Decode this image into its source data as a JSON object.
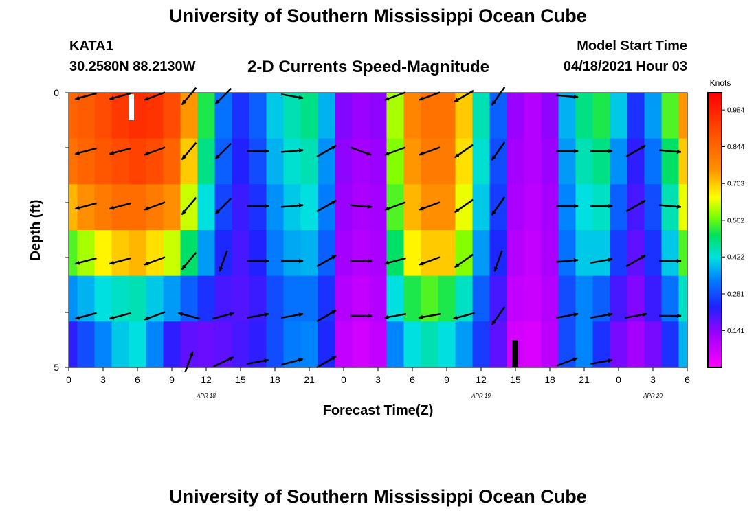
{
  "header": {
    "title": "University of Southern Mississippi Ocean Cube",
    "station": "KATA1",
    "location": "30.2580N  88.2130W",
    "chart_title": "2-D Currents Speed-Magnitude",
    "model_label": "Model Start Time",
    "model_time": "04/18/2021 Hour 03"
  },
  "footer": {
    "title": "University of Southern Mississippi Ocean Cube"
  },
  "colors": {
    "arrow": "#000000",
    "frame": "#000000"
  },
  "chart_data": {
    "type": "heatmap",
    "title": "2-D Currents Speed-Magnitude",
    "xlabel": "Forecast Time(Z)",
    "ylabel": "Depth (ft)",
    "x_ticks": [
      "0",
      "3",
      "6",
      "9",
      "12",
      "15",
      "18",
      "21",
      "0",
      "3",
      "6",
      "9",
      "12",
      "15",
      "18",
      "21",
      "0",
      "3",
      "6"
    ],
    "x_range_hours": [
      0,
      54
    ],
    "date_labels": [
      {
        "label": "APR 18",
        "hour": 12
      },
      {
        "label": "APR 19",
        "hour": 36
      },
      {
        "label": "APR 20",
        "hour": 51
      }
    ],
    "y_ticks": [
      "0",
      "5"
    ],
    "depth_range_ft": [
      0,
      5
    ],
    "colorbar": {
      "unit": "Knots",
      "ticks": [
        "0.141",
        "0.281",
        "0.422",
        "0.562",
        "0.703",
        "0.844",
        "0.984"
      ],
      "tick_values": [
        0.141,
        0.281,
        0.422,
        0.562,
        0.703,
        0.844,
        0.984
      ],
      "range": [
        0.0,
        1.05
      ]
    },
    "column_hours": [
      0,
      1.5,
      3,
      4.5,
      6,
      7.5,
      9,
      10.5,
      12,
      13.5,
      15,
      16.5,
      18,
      19.5,
      21,
      22.5,
      24,
      25.5,
      27,
      28.5,
      30,
      31.5,
      33,
      34.5,
      36,
      37.5,
      39,
      40.5,
      42,
      43.5,
      45,
      46.5,
      48,
      49.5,
      51,
      52.5,
      54
    ],
    "speed_knots": [
      [
        0.85,
        0.87,
        0.9,
        0.94,
        0.96,
        0.95,
        0.9,
        0.75,
        0.52,
        0.32,
        0.25,
        0.3,
        0.4,
        0.45,
        0.48,
        0.38,
        0.15,
        0.13,
        0.14,
        0.6,
        0.78,
        0.82,
        0.82,
        0.7,
        0.45,
        0.3,
        0.13,
        0.1,
        0.14,
        0.38,
        0.48,
        0.52,
        0.4,
        0.25,
        0.36,
        0.55,
        0.75
      ],
      [
        0.82,
        0.85,
        0.88,
        0.9,
        0.92,
        0.9,
        0.85,
        0.7,
        0.48,
        0.3,
        0.23,
        0.28,
        0.38,
        0.43,
        0.45,
        0.35,
        0.14,
        0.12,
        0.13,
        0.58,
        0.75,
        0.8,
        0.8,
        0.68,
        0.43,
        0.28,
        0.12,
        0.1,
        0.13,
        0.36,
        0.45,
        0.48,
        0.35,
        0.22,
        0.32,
        0.5,
        0.7
      ],
      [
        0.72,
        0.76,
        0.8,
        0.83,
        0.83,
        0.8,
        0.76,
        0.62,
        0.42,
        0.27,
        0.21,
        0.25,
        0.35,
        0.4,
        0.42,
        0.33,
        0.13,
        0.11,
        0.12,
        0.55,
        0.72,
        0.76,
        0.76,
        0.64,
        0.4,
        0.26,
        0.11,
        0.09,
        0.12,
        0.34,
        0.42,
        0.44,
        0.3,
        0.2,
        0.28,
        0.45,
        0.64
      ],
      [
        0.55,
        0.6,
        0.66,
        0.7,
        0.72,
        0.68,
        0.62,
        0.5,
        0.36,
        0.24,
        0.2,
        0.23,
        0.33,
        0.37,
        0.38,
        0.3,
        0.12,
        0.1,
        0.11,
        0.5,
        0.66,
        0.7,
        0.7,
        0.58,
        0.36,
        0.24,
        0.1,
        0.08,
        0.11,
        0.32,
        0.4,
        0.4,
        0.26,
        0.18,
        0.25,
        0.4,
        0.55
      ],
      [
        0.35,
        0.38,
        0.42,
        0.44,
        0.45,
        0.4,
        0.36,
        0.3,
        0.25,
        0.2,
        0.19,
        0.21,
        0.28,
        0.32,
        0.32,
        0.25,
        0.1,
        0.08,
        0.1,
        0.42,
        0.52,
        0.55,
        0.52,
        0.44,
        0.3,
        0.2,
        0.08,
        0.07,
        0.1,
        0.28,
        0.34,
        0.3,
        0.2,
        0.15,
        0.21,
        0.32,
        0.44
      ],
      [
        0.22,
        0.28,
        0.34,
        0.4,
        0.42,
        0.34,
        0.22,
        0.18,
        0.17,
        0.18,
        0.2,
        0.22,
        0.28,
        0.33,
        0.34,
        0.24,
        0.08,
        0.06,
        0.08,
        0.34,
        0.42,
        0.45,
        0.42,
        0.36,
        0.26,
        0.18,
        0.06,
        0.05,
        0.09,
        0.28,
        0.34,
        0.25,
        0.16,
        0.12,
        0.16,
        0.25,
        0.38
      ]
    ],
    "vectors": {
      "hours": [
        1.5,
        4.5,
        7.5,
        10.5,
        13.5,
        16.5,
        19.5,
        22.5,
        25.5,
        28.5,
        31.5,
        34.5,
        37.5,
        40.5,
        43.5,
        46.5,
        49.5,
        52.5
      ],
      "depths_ft": [
        0,
        1,
        2,
        3,
        4,
        5
      ],
      "direction_deg": [
        [
          255,
          255,
          250,
          220,
          225,
          null,
          100,
          null,
          null,
          250,
          250,
          240,
          215,
          null,
          95,
          null,
          null,
          null
        ],
        [
          255,
          255,
          250,
          220,
          225,
          90,
          85,
          60,
          110,
          250,
          250,
          235,
          215,
          null,
          90,
          90,
          60,
          95
        ],
        [
          255,
          255,
          250,
          220,
          225,
          90,
          85,
          60,
          95,
          250,
          250,
          235,
          215,
          null,
          90,
          90,
          60,
          95
        ],
        [
          255,
          255,
          250,
          220,
          200,
          90,
          90,
          60,
          90,
          255,
          250,
          235,
          200,
          null,
          85,
          80,
          60,
          90
        ],
        [
          255,
          255,
          250,
          285,
          75,
          80,
          80,
          60,
          90,
          260,
          260,
          255,
          215,
          null,
          80,
          80,
          80,
          90
        ],
        [
          null,
          null,
          null,
          20,
          65,
          80,
          75,
          60,
          null,
          null,
          null,
          null,
          null,
          null,
          70,
          80,
          null,
          null
        ]
      ]
    }
  }
}
